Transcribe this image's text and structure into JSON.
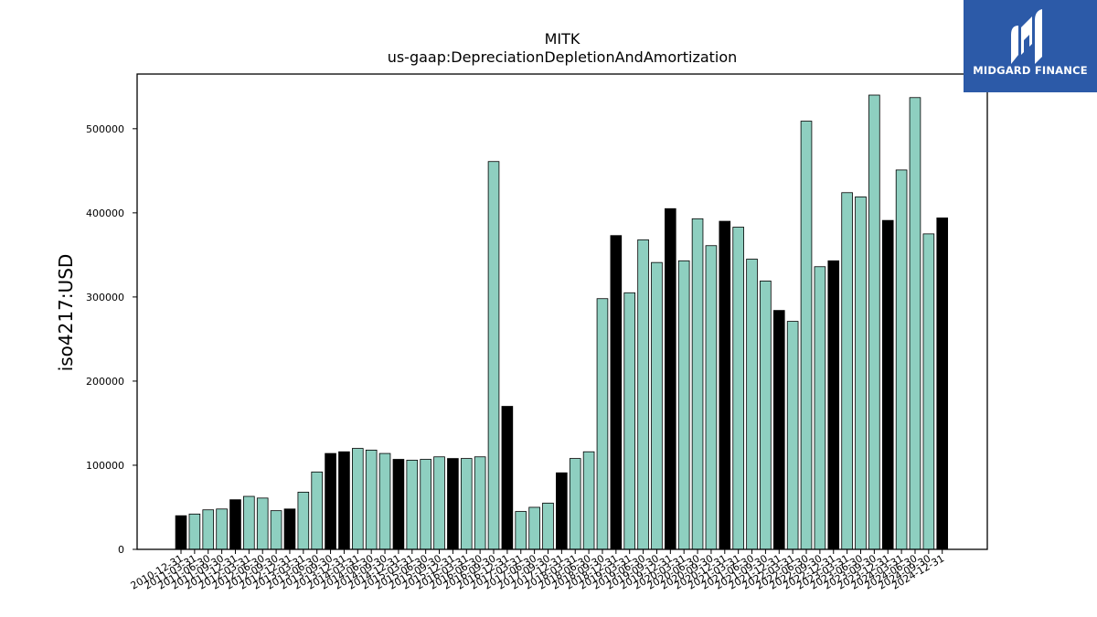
{
  "header": {
    "title": "MITK",
    "subtitle": "us-gaap:DepreciationDepletionAndAmortization"
  },
  "brand": {
    "name": "MIDGARD FINANCE",
    "color": "#2c5aa8",
    "icon": "midgard-logo-icon"
  },
  "colors": {
    "annual_bar": "#000000",
    "quarterly_bar": "#8ecfc0",
    "bar_edge": "#000000"
  },
  "chart_data": {
    "type": "bar",
    "title": "MITK",
    "subtitle": "us-gaap:DepreciationDepletionAndAmortization",
    "xlabel": "",
    "ylabel": "iso4217:USD",
    "ylim": [
      0,
      565000
    ],
    "yticks": [
      0,
      100000,
      200000,
      300000,
      400000,
      500000
    ],
    "grid": false,
    "categories": [
      "2010-12-31",
      "2011-03-31",
      "2011-06-30",
      "2011-09-30",
      "2011-12-31",
      "2012-03-31",
      "2012-06-30",
      "2012-09-30",
      "2012-12-31",
      "2013-03-31",
      "2013-06-30",
      "2013-09-30",
      "2013-12-31",
      "2014-03-31",
      "2014-06-30",
      "2014-09-30",
      "2014-12-31",
      "2015-03-31",
      "2015-06-30",
      "2015-09-30",
      "2015-12-31",
      "2016-03-31",
      "2016-06-30",
      "2016-09-30",
      "2016-12-31",
      "2017-03-31",
      "2017-06-30",
      "2017-09-30",
      "2017-12-31",
      "2018-03-31",
      "2018-06-30",
      "2018-09-30",
      "2018-12-31",
      "2019-03-31",
      "2019-06-30",
      "2019-09-30",
      "2019-12-31",
      "2020-03-31",
      "2020-06-30",
      "2020-09-30",
      "2020-12-31",
      "2021-03-31",
      "2021-06-30",
      "2021-09-30",
      "2021-12-31",
      "2022-03-31",
      "2022-06-30",
      "2022-09-30",
      "2022-12-31",
      "2023-03-31",
      "2023-06-30",
      "2023-09-30",
      "2023-12-31",
      "2024-03-31",
      "2024-06-30",
      "2024-09-30",
      "2024-12-31"
    ],
    "values": [
      40000,
      42000,
      47000,
      48000,
      59000,
      63000,
      61000,
      46000,
      48000,
      68000,
      92000,
      114000,
      116000,
      120000,
      118000,
      114000,
      107000,
      106000,
      107000,
      110000,
      108000,
      108000,
      110000,
      461000,
      170000,
      45000,
      50000,
      55000,
      91000,
      108000,
      116000,
      298000,
      373000,
      305000,
      368000,
      341000,
      405000,
      343000,
      393000,
      361000,
      390000,
      383000,
      345000,
      319000,
      284000,
      271000,
      509000,
      336000,
      343000,
      424000,
      419000,
      540000,
      391000,
      451000,
      537000,
      375000,
      394000
    ],
    "annual": [
      true,
      false,
      false,
      false,
      true,
      false,
      false,
      false,
      true,
      false,
      false,
      true,
      true,
      false,
      false,
      false,
      true,
      false,
      false,
      false,
      true,
      false,
      false,
      false,
      true,
      false,
      false,
      false,
      true,
      false,
      false,
      false,
      true,
      false,
      false,
      false,
      true,
      false,
      false,
      false,
      true,
      false,
      false,
      false,
      true,
      false,
      false,
      false,
      true,
      false,
      false,
      false,
      true,
      false,
      false,
      false,
      true
    ]
  }
}
